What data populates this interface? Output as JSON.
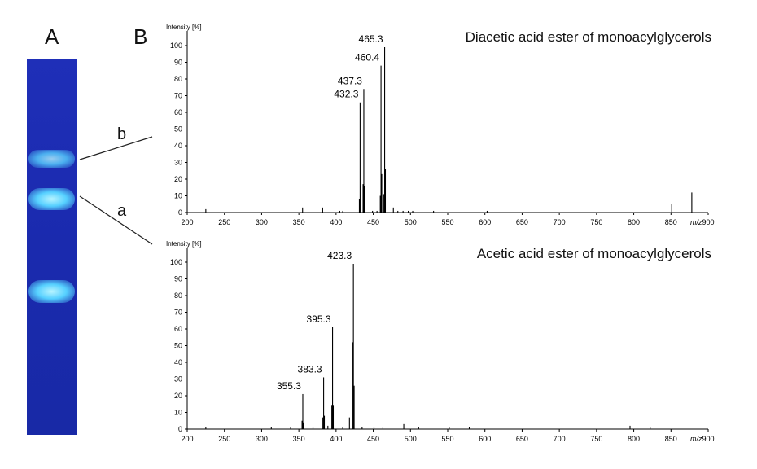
{
  "panels": {
    "a_letter": "A",
    "b_letter": "B"
  },
  "tlc": {
    "band_b_label": "b",
    "band_a_label": "a"
  },
  "chart_data": [
    {
      "type": "line",
      "title": "Diacetic acid ester of monoacylglycerols",
      "ylabel": "Intensity [%]",
      "xlabel": "m/z",
      "xlim": [
        200,
        900
      ],
      "ylim": [
        0,
        100
      ],
      "xticks": [
        200,
        250,
        300,
        350,
        400,
        450,
        500,
        550,
        600,
        650,
        700,
        750,
        800,
        850,
        900
      ],
      "yticks": [
        0,
        10,
        20,
        30,
        40,
        50,
        60,
        70,
        80,
        90,
        100
      ],
      "grid": false,
      "peaks": [
        {
          "x": 225,
          "y": 2
        },
        {
          "x": 355,
          "y": 3
        },
        {
          "x": 382,
          "y": 3
        },
        {
          "x": 405,
          "y": 1
        },
        {
          "x": 409,
          "y": 1
        },
        {
          "x": 431.3,
          "y": 8
        },
        {
          "x": 432.3,
          "y": 66
        },
        {
          "x": 433.3,
          "y": 16
        },
        {
          "x": 436.3,
          "y": 17
        },
        {
          "x": 437.3,
          "y": 74
        },
        {
          "x": 438.3,
          "y": 16
        },
        {
          "x": 449,
          "y": 1
        },
        {
          "x": 455,
          "y": 1
        },
        {
          "x": 459.4,
          "y": 10
        },
        {
          "x": 460.4,
          "y": 88
        },
        {
          "x": 461.4,
          "y": 23
        },
        {
          "x": 464.3,
          "y": 11
        },
        {
          "x": 465.3,
          "y": 99
        },
        {
          "x": 466.3,
          "y": 26
        },
        {
          "x": 477,
          "y": 3
        },
        {
          "x": 483,
          "y": 1
        },
        {
          "x": 490,
          "y": 1
        },
        {
          "x": 497,
          "y": 1
        },
        {
          "x": 503,
          "y": 1
        },
        {
          "x": 531,
          "y": 1
        },
        {
          "x": 603,
          "y": 1
        },
        {
          "x": 851,
          "y": 5
        },
        {
          "x": 878,
          "y": 12
        }
      ],
      "labels": [
        {
          "text": "432.3",
          "x": 432.3,
          "y": 66
        },
        {
          "text": "437.3",
          "x": 437.3,
          "y": 74
        },
        {
          "text": "460.4",
          "x": 460.4,
          "y": 88
        },
        {
          "text": "465.3",
          "x": 465.3,
          "y": 99
        }
      ]
    },
    {
      "type": "line",
      "title": "Acetic acid ester of monoacylglycerols",
      "ylabel": "Intensity [%]",
      "xlabel": "m/z",
      "xlim": [
        200,
        900
      ],
      "ylim": [
        0,
        100
      ],
      "xticks": [
        200,
        250,
        300,
        350,
        400,
        450,
        500,
        550,
        600,
        650,
        700,
        750,
        800,
        850,
        900
      ],
      "yticks": [
        0,
        10,
        20,
        30,
        40,
        50,
        60,
        70,
        80,
        90,
        100
      ],
      "grid": false,
      "peaks": [
        {
          "x": 225,
          "y": 1
        },
        {
          "x": 313,
          "y": 1
        },
        {
          "x": 339,
          "y": 1
        },
        {
          "x": 354.3,
          "y": 5
        },
        {
          "x": 355.3,
          "y": 21
        },
        {
          "x": 356.3,
          "y": 4
        },
        {
          "x": 369,
          "y": 1
        },
        {
          "x": 382.3,
          "y": 7
        },
        {
          "x": 383.3,
          "y": 31
        },
        {
          "x": 384.3,
          "y": 8
        },
        {
          "x": 389,
          "y": 2
        },
        {
          "x": 394.3,
          "y": 14
        },
        {
          "x": 395.3,
          "y": 61
        },
        {
          "x": 396.3,
          "y": 14
        },
        {
          "x": 409,
          "y": 1
        },
        {
          "x": 418,
          "y": 7
        },
        {
          "x": 422.3,
          "y": 52
        },
        {
          "x": 423.3,
          "y": 99
        },
        {
          "x": 424.3,
          "y": 26
        },
        {
          "x": 435,
          "y": 1
        },
        {
          "x": 451,
          "y": 1
        },
        {
          "x": 463,
          "y": 1
        },
        {
          "x": 491,
          "y": 3
        },
        {
          "x": 511,
          "y": 1
        },
        {
          "x": 552,
          "y": 1
        },
        {
          "x": 579,
          "y": 1
        },
        {
          "x": 795,
          "y": 2
        },
        {
          "x": 822,
          "y": 1
        }
      ],
      "labels": [
        {
          "text": "355.3",
          "x": 355.3,
          "y": 21
        },
        {
          "text": "383.3",
          "x": 383.3,
          "y": 31
        },
        {
          "text": "395.3",
          "x": 395.3,
          "y": 61
        },
        {
          "text": "423.3",
          "x": 423.3,
          "y": 99
        }
      ]
    }
  ]
}
